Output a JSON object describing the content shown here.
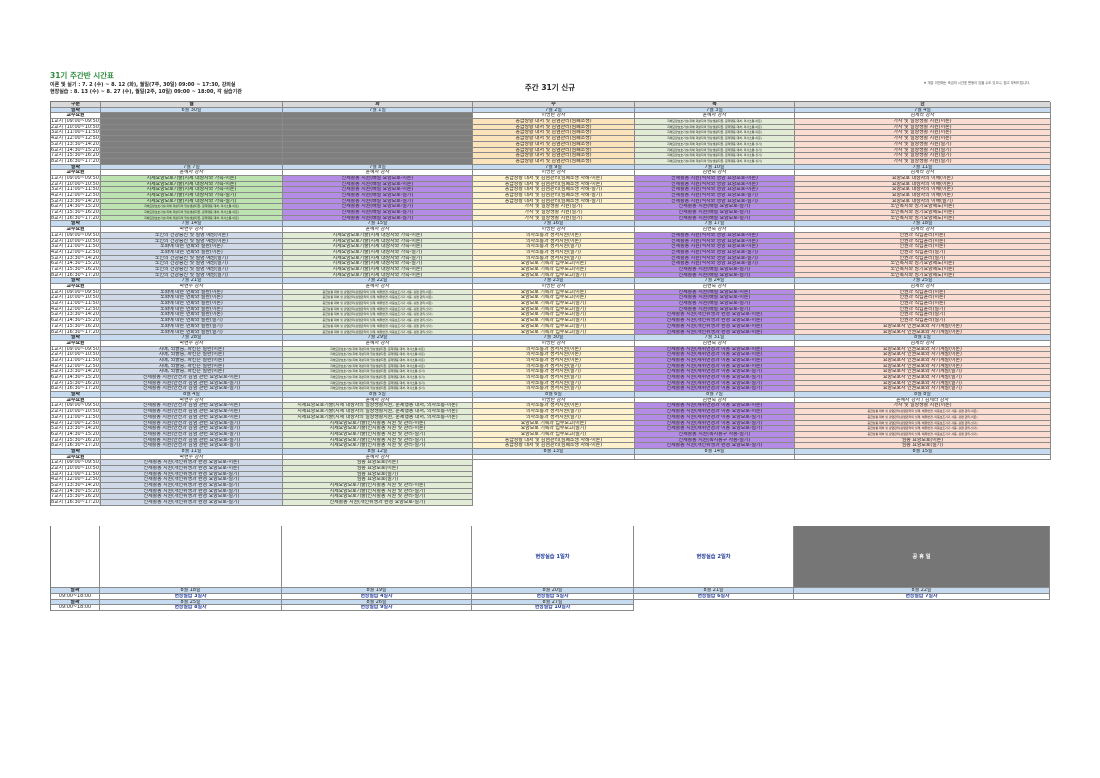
{
  "title": "31기 주간반 시간표",
  "theory": "이론 및 실기 : 7. 2 (수) ~ 8. 12 (화), 월일(7주, 30일) 09:00 ~ 17:30, 강의실",
  "field": "현장실습 : 8. 13 (수) ~ 8. 27 (수), 월일(2주, 10일) 09:00 ~ 18:00, 각 실습기관",
  "center": "주간 31기 신규",
  "note": "※ 개강 이전에는 조금의 시간표 변동이 있을 수도 있으니, 참고 부탁드립니다.",
  "header": [
    "구분",
    "월",
    "화",
    "수",
    "목",
    "금"
  ],
  "lbl": {
    "date": "날짜",
    "inst": "교수요원"
  },
  "periods": [
    "1교시 (09:00~09:50)",
    "2교시 (10:00~10:50)",
    "3교시 (11:00~11:50)",
    "4교시 (12:00~12:50)",
    "5교시 (13:30~14:20)",
    "6교시 (14:30~15:20)",
    "7교시 (15:30~16:20)",
    "8교시 (16:30~17:20)"
  ],
  "week1": {
    "dates": [
      "6월 30일",
      "7월 1일",
      "7월 2일",
      "7월 3일",
      "7월 4일"
    ],
    "inst": [
      "",
      "",
      "이명란 강사",
      "윤혜자 강사",
      "김세라 강사"
    ],
    "wed": [
      "응급상황 대처 및 감염관리(심폐소생)",
      "응급상황 대처 및 감염관리(심폐소생)",
      "응급상황 대처 및 감염관리(심폐소생)",
      "응급상황 대처 및 감염관리(심폐소생)",
      "응급상황 대처 및 감염관리(심폐소생)",
      "응급상황 대처 및 감염관리(심폐소생)",
      "응급상황 대처 및 감염관리(심폐소생)",
      "응급상황 대처 및 감염관리(심폐소생)"
    ],
    "thu": [
      "지체요양보호기술(지체 대상자의 일상생활지원, 문제행동 대처, 의사소통-이론)",
      "지체요양보호기술(지체 대상자의 일상생활지원, 문제행동 대처, 의사소통-이론)",
      "지체요양보호기술(지체 대상자의 일상생활지원, 문제행동 대처, 의사소통-이론)",
      "지체요양보호기술(지체 대상자의 일상생활지원, 문제행동 대처, 의사소통-이론)",
      "지체요양보호기술(지체 대상자의 일상생활지원, 문제행동 대처, 의사소통-실기)",
      "지체요양보호기술(지체 대상자의 일상생활지원, 문제행동 대처, 의사소통-실기)",
      "지체요양보호기술(지체 대상자의 일상생활지원, 문제행동 대처, 의사소통-실기)",
      "지체요양보호기술(지체 대상자의 일상생활지원, 문제행동 대처, 의사소통-실기)"
    ],
    "fri": [
      "가사 및 일상생활 지원(이론)",
      "가사 및 일상생활 지원(이론)",
      "가사 및 일상생활 지원(이론)",
      "가사 및 일상생활 지원(이론)",
      "가사 및 일상생활 지원(실기)",
      "가사 및 일상생활 지원(실기)",
      "가사 및 일상생활 지원(실기)",
      "가사 및 일상생활 지원(실기)"
    ]
  },
  "week2": {
    "dates": [
      "7월 7일",
      "7월 8일",
      "7월 9일",
      "7월 10일",
      "7월 11일"
    ],
    "inst": [
      "윤혜자 강사",
      "윤혜자 강사",
      "이명란 강사",
      "김현숙 강사",
      "김세라 강사"
    ],
    "mon": [
      "지체요양보호기술(지체 대상자와 가족-이론)",
      "지체요양보호기술(지체 대상자와 가족-이론)",
      "지체요양보호기술(지체 대상자와 가족-이론)",
      "지체요양보호기술(지체 대상자와 가족-실기)",
      "지체요양보호기술(지체 대상자와 가족-실기)",
      "지체요양보호기술(지체 대상자의 일상생활지원, 문제행동 대처, 의사소통-이론)",
      "지체요양보호기술(지체 대상자의 일상생활지원, 문제행동 대처, 의사소통-이론)",
      "지체요양보호기술(지체 대상자의 일상생활지원, 문제행동 대처, 의사소통-이론)"
    ],
    "tue": [
      "신체활동 지원(배설 요양보호-이론)",
      "신체활동 지원(배설 요양보호-이론)",
      "신체활동 지원(배설 요양보호-이론)",
      "신체활동 지원(배설 요양보호-실기)",
      "신체활동 지원(배설 요양보호-실기)",
      "신체활동 지원(배설 요양보호-실기)",
      "신체활동 지원(배설 요양보호-실기)",
      "신체활동 지원(배설 요양보호-실기)"
    ],
    "wed": [
      "응급상황 대처 및 감염관리(심폐소생 사례-이론)",
      "응급상황 대처 및 감염관리(심폐소생 사례-이론)",
      "응급상황 대처 및 감염관리(심폐소생 사례-실기)",
      "응급상황 대처 및 감염관리(심폐소생 사례-실기)",
      "응급상황 대처 및 감염관리(심폐소생 사례-실기)",
      "가사 및 일상생활 지원(실기)",
      "가사 및 일상생활 지원(실기)",
      "가사 및 일상생활 지원(실기)"
    ],
    "thu": [
      "신체활동 지원(식사와 영양 요양보호-이론)",
      "신체활동 지원(식사와 영양 요양보호-이론)",
      "신체활동 지원(식사와 영양 요양보호-이론)",
      "신체활동 지원(식사와 영양 요양보호-실기)",
      "신체활동 지원(식사와 영양 요양보호-실기)",
      "신체활동 지원(배설 요양보호-실기)",
      "신체활동 지원(배설 요양보호-실기)",
      "신체활동 지원(배설 요양보호-실기)"
    ],
    "fri": [
      "요양보호 대상자의 이해(이론)",
      "요양보호 대상자의 이해(이론)",
      "요양보호 대상자의 이해(이론)",
      "요양보호 대상자의 이해(이론)",
      "요양보호 대상자의 이해(실기)",
      "노인복지와 장기요양제도(이론)",
      "노인복지와 장기요양제도(이론)",
      "노인복지와 장기요양제도(이론)"
    ]
  },
  "week3": {
    "dates": [
      "7월 14일",
      "7월 15일",
      "7월 16일",
      "7월 17일",
      "7월 18일"
    ],
    "inst": [
      "박현주 강사",
      "윤혜자 강사",
      "이명란 강사",
      "김현숙 강사",
      "김세라 강사"
    ],
    "mon": [
      "노인의 건강증진 및 질병 예방(이론)",
      "노인의 건강증진 및 질병 예방(이론)",
      "노화에 따른 변화와 질환(이론)",
      "노화에 따른 변화와 질환(이론)",
      "노인의 건강증진 및 질병 예방(실기)",
      "노인의 건강증진 및 질병 예방(실기)",
      "노인의 건강증진 및 질병 예방(실기)",
      "노인의 건강증진 및 질병 예방(실기)"
    ],
    "tue": [
      "지체요양보호기술(지체 대상자와 가족-이론)",
      "지체요양보호기술(지체 대상자와 가족-이론)",
      "지체요양보호기술(지체 대상자와 가족-이론)",
      "지체요양보호기술(지체 대상자와 가족-실기)",
      "지체요양보호기술(지체 대상자와 가족-실기)",
      "지체요양보호기술(지체 대상자와 가족-실기)",
      "지체요양보호기술(지체 대상자와 가족-이론)",
      "지체요양보호기술(지체 대상자와 가족-이론)"
    ],
    "wed": [
      "의사소통과 정서지원(이론)",
      "의사소통과 정서지원(이론)",
      "의사소통과 정서지원(실기)",
      "의사소통과 정서지원(실기)",
      "의사소통과 정서지원(실기)",
      "요양보호 기록과 업무보고(이론)",
      "요양보호 기록과 업무보고(이론)",
      "요양보호 기록과 업무보고(실기)"
    ],
    "thu": [
      "신체활동 지원(식사와 영양 요양보호-이론)",
      "신체활동 지원(식사와 영양 요양보호-이론)",
      "신체활동 지원(식사와 영양 요양보호-이론)",
      "신체활동 지원(식사와 영양 요양보호-실기)",
      "신체활동 지원(식사와 영양 요양보호-실기)",
      "신체활동 지원(식사와 영양 요양보호-실기)",
      "신체활동 지원(배설 요양보호-실기)",
      "신체활동 지원(배설 요양보호-실기)"
    ],
    "fri": [
      "인권과 직업윤리(이론)",
      "인권과 직업윤리(이론)",
      "인권과 직업윤리(이론)",
      "인권과 직업윤리(실기)",
      "인권과 직업윤리(실기)",
      "노인복지와 장기요양제도(이론)",
      "노인복지와 장기요양제도(이론)",
      "노인복지와 장기요양제도(이론)"
    ]
  },
  "week4": {
    "dates": [
      "7월 21일",
      "7월 22일",
      "7월 23일",
      "7월 24일",
      "7월 25일"
    ],
    "inst": [
      "박현주 강사",
      "윤혜자 강사",
      "이명란 강사",
      "김현숙 강사",
      "김세라 강사"
    ],
    "mon": [
      "노화에 따른 변화와 질환(이론)",
      "노화에 따른 변화와 질환(이론)",
      "노화에 따른 변화와 질환(이론)",
      "노화에 따른 변화와 질환(이론)",
      "노화에 따른 변화와 질환(이론)",
      "노화에 따른 변화와 질환(실기)",
      "노화에 따른 변화와 질환(실기)",
      "노화에 따른 변화와 질환(실기)"
    ],
    "tue": [
      "응급상황 대처 및 감염관리(감염관리의 실제, 체위변경, 이동보조기기 사용, 감염 관리-이론)",
      "응급상황 대처 및 감염관리(감염관리의 실제, 체위변경, 이동보조기기 사용, 감염 관리-이론)",
      "응급상황 대처 및 감염관리(감염관리의 실제, 체위변경, 이동보조기기 사용, 감염 관리-이론)",
      "응급상황 대처 및 감염관리(감염관리의 실제, 체위변경, 이동보조기기 사용, 감염 관리-실기)",
      "응급상황 대처 및 감염관리(감염관리의 실제, 체위변경, 이동보조기기 사용, 감염 관리-실기)",
      "응급상황 대처 및 감염관리(감염관리의 실제, 체위변경, 이동보조기기 사용, 감염 관리-실기)",
      "응급상황 대처 및 감염관리(감염관리의 실제, 체위변경, 이동보조기기 사용, 감염 관리-실기)",
      "응급상황 대처 및 감염관리(감염관리의 실제, 체위변경, 이동보조기기 사용, 감염 관리-실기)"
    ],
    "wed": [
      "요양보호 기록과 업무보고(이론)",
      "요양보호 기록과 업무보고(이론)",
      "요양보호 기록과 업무보고(실기)",
      "요양보호 기록과 업무보고(실기)",
      "요양보호 기록과 업무보고(실기)",
      "요양보호 기록과 업무보고(실기)",
      "요양보호 기록과 업무보고(실기)",
      "요양보호 기록과 업무보고(실기)"
    ],
    "thu": [
      "신체활동 지원(배설 요양보호-이론)",
      "신체활동 지원(배설 요양보호-이론)",
      "신체활동 지원(배설 요양보호-실기)",
      "신체활동 지원(배설 요양보호-실기)",
      "신체활동 지원(개인위생과 환경 요양보호-이론)",
      "신체활동 지원(개인위생과 환경 요양보호-이론)",
      "신체활동 지원(개인위생과 환경 요양보호-이론)",
      "신체활동 지원(개인위생과 환경 요양보호-이론)"
    ],
    "fri": [
      "인권과 직업윤리(이론)",
      "인권과 직업윤리(이론)",
      "인권과 직업윤리(이론)",
      "인권과 직업윤리(실기)",
      "인권과 직업윤리(실기)",
      "인권과 직업윤리(실기)",
      "요양보호사 인권보호와 자기계발(이론)",
      "요양보호사 인권보호와 자기계발(이론)"
    ]
  },
  "week5": {
    "dates": [
      "7월 28일",
      "7월 29일",
      "7월 30일",
      "7월 31일",
      "8월 1일"
    ],
    "inst": [
      "박현주 강사",
      "윤혜자 강사",
      "이명란 강사",
      "김현숙 강사",
      "김세라 강사"
    ],
    "mon": [
      "치매, 뇌졸중, 파킨슨 질환(이론)",
      "치매, 뇌졸중, 파킨슨 질환(이론)",
      "치매, 뇌졸중, 파킨슨 질환(이론)",
      "치매, 뇌졸중, 파킨슨 질환(이론)",
      "치매, 뇌졸중, 파킨슨 질환(이론)",
      "신체활동 지원(안전과 감염 관련 요양보호-이론)",
      "신체활동 지원(안전과 감염 관련 요양보호-실기)",
      "신체활동 지원(안전과 감염 관련 요양보호-실기)"
    ],
    "tue": [
      "지체요양보호기술(지체 대상자의 일상생활지원, 문제행동 대처, 의사소통-이론)",
      "지체요양보호기술(지체 대상자의 일상생활지원, 문제행동 대처, 의사소통-이론)",
      "지체요양보호기술(지체 대상자의 일상생활지원, 문제행동 대처, 의사소통-이론)",
      "지체요양보호기술(지체 대상자의 일상생활지원, 문제행동 대처, 의사소통-이론)",
      "지체요양보호기술(지체 대상자의 일상생활지원, 문제행동 대처, 의사소통-실기)",
      "지체요양보호기술(지체 대상자의 일상생활지원, 문제행동 대처, 의사소통-실기)",
      "지체요양보호기술(지체 대상자의 일상생활지원, 문제행동 대처, 의사소통-실기)",
      "지체요양보호기술(지체 대상자의 일상생활지원, 문제행동 대처, 의사소통-실기)"
    ],
    "wed": [
      "의사소통과 정서지원(이론)",
      "의사소통과 정서지원(이론)",
      "의사소통과 정서지원(이론)",
      "의사소통과 정서지원(실기)",
      "의사소통과 정서지원(실기)",
      "의사소통과 정서지원(실기)",
      "의사소통과 정서지원(실기)",
      "의사소통과 정서지원(실기)"
    ],
    "thu": [
      "신체활동 지원(체위변경과 이동 요양보호-이론)",
      "신체활동 지원(체위변경과 이동 요양보호-이론)",
      "신체활동 지원(체위변경과 이동 요양보호-이론)",
      "신체활동 지원(체위변경과 이동 요양보호-이론)",
      "신체활동 지원(체위변경과 이동 요양보호-실기)",
      "신체활동 지원(체위변경과 이동 요양보호-실기)",
      "신체활동 지원(체위변경과 이동 요양보호-실기)",
      "신체활동 지원(체위변경과 이동 요양보호-실기)"
    ],
    "fri": [
      "요양보호사 인권보호와 자기계발(이론)",
      "요양보호사 인권보호와 자기계발(이론)",
      "요양보호사 인권보호와 자기계발(이론)",
      "요양보호사 인권보호와 자기계발(이론)",
      "요양보호사 인권보호와 자기계발(실기)",
      "요양보호사 인권보호와 자기계발(실기)",
      "요양보호사 인권보호와 자기계발(실기)",
      "요양보호사 인권보호와 자기계발(실기)"
    ]
  },
  "week6": {
    "dates": [
      "8월 4일",
      "8월 5일",
      "8월 6일",
      "8월 7일",
      "8월 8일"
    ],
    "inst": [
      "박현주 강사",
      "윤혜자 강사",
      "이명란 강사",
      "김현숙 강사",
      "윤혜자 강사 / 김세라 강사"
    ],
    "mon": [
      "신체활동 지원(안전과 감염 관련 요양보호-이론)",
      "신체활동 지원(안전과 감염 관련 요양보호-이론)",
      "신체활동 지원(안전과 감염 관련 요양보호-이론)",
      "신체활동 지원(안전과 감염 관련 요양보호-실기)",
      "신체활동 지원(안전과 감염 관련 요양보호-실기)",
      "신체활동 지원(안전과 감염 관련 요양보호-실기)",
      "신체활동 지원(안전과 감염 관련 요양보호-실기)",
      "신체활동 지원(안전과 감염 관련 요양보호-실기)"
    ],
    "tue": [
      "지체요양보호기술(지체 대상자의 일상생활지원, 문제행동 대처, 의사소통-이론)",
      "지체요양보호기술(지체 대상자의 일상생활지원, 문제행동 대처, 의사소통-이론)",
      "지체요양보호기술(지체 대상자의 일상생활지원, 문제행동 대처, 의사소통-이론)",
      "지체요양보호기술(인지활동 지원 및 관리-이론)",
      "지체요양보호기술(인지활동 지원 및 관리-이론)",
      "지체요양보호기술(인지활동 지원 및 관리-실기)",
      "지체요양보호기술(인지활동 지원 및 관리-실기)",
      "지체요양보호기술(인지활동 지원 및 관리-실기)"
    ],
    "wed": [
      "의사소통과 정서지원(이론)",
      "의사소통과 정서지원(실기)",
      "의사소통과 정서지원(실기)",
      "요양보호 기록과 업무보고(이론)",
      "요양보호 기록과 업무보고(실기)",
      "요양보호 기록과 업무보고(실기)",
      "응급상황 대처 및 감염관리(심폐소생 사례-이론)",
      "응급상황 대처 및 감염관리(심폐소생 사례-이론)"
    ],
    "thu": [
      "신체활동 지원(체위변경과 이동 요양보호-이론)",
      "신체활동 지원(체위변경과 이동 요양보호-이론)",
      "신체활동 지원(체위변경과 이동 요양보호-실기)",
      "신체활동 지원(체위변경과 이동 요양보호-실기)",
      "신체활동 지원(체위변경과 이동 요양보호-실기)",
      "신체활동 지원(복지용구 사용-실기)",
      "신체활동 지원(복지용구 사용-실기)",
      "신체활동 지원(개인위생과 환경 요양보호-실기)"
    ],
    "fri": [
      "가사 및 일상생활 지원(이론)",
      "응급상황 대처 및 감염관리(감염관리의 실제, 체위변경, 이동보조기기 사용, 감염 관리-이론)",
      "응급상황 대처 및 감염관리(감염관리의 실제, 체위변경, 이동보조기기 사용, 감염 관리-이론)",
      "응급상황 대처 및 감염관리(감염관리의 실제, 체위변경, 이동보조기기 사용, 감염 관리-실기)",
      "응급상황 대처 및 감염관리(감염관리의 실제, 체위변경, 이동보조기기 사용, 감염 관리-실기)",
      "응급상황 대처 및 감염관리(감염관리의 실제, 체위변경, 이동보조기기 사용, 감염 관리-실기)",
      "임종 요양보호(이론)",
      "임종 요양보호(실기)"
    ]
  },
  "week7": {
    "dates": [
      "8월 11일",
      "8월 12일",
      "8월 13일",
      "8월 14일",
      "8월 15일"
    ],
    "inst": [
      "박현주 강사",
      "윤혜자 강사"
    ],
    "mon": [
      "신체활동 지원(개인위생과 환경 요양보호-이론)",
      "신체활동 지원(개인위생과 환경 요양보호-이론)",
      "신체활동 지원(개인위생과 환경 요양보호-실기)",
      "신체활동 지원(개인위생과 환경 요양보호-실기)",
      "신체활동 지원(개인위생과 환경 요양보호-실기)",
      "신체활동 지원(개인위생과 환경 요양보호-실기)",
      "신체활동 지원(개인위생과 환경 요양보호-실기)",
      "신체활동 지원(개인위생과 환경 요양보호-실기)"
    ],
    "tue": [
      "임종 요양보호(이론)",
      "임종 요양보호(이론)",
      "임종 요양보호(실기)",
      "임종 요양보호(실기)",
      "지체요양보호기술(인지활동 지원 및 관리-이론)",
      "지체요양보호기술(인지활동 지원 및 관리-실기)",
      "지체요양보호기술(인지활동 지원 및 관리-실기)",
      "신체활동 지원(개인위생과 환경 요양보호-실기)"
    ],
    "wed": "현장실습 1일차",
    "thu": "현장실습 2일차",
    "fri": "공 휴 일"
  },
  "week8": {
    "dates": [
      "8월 18일",
      "8월 19일",
      "8월 20일",
      "8월 21일",
      "8월 22일"
    ],
    "time": "09:00~18:00",
    "labels": [
      "현장실습 3일차",
      "현장실습 4일차",
      "현장실습 5일차",
      "현장실습 6일차",
      "현장실습 7일차"
    ]
  },
  "week9": {
    "dates": [
      "8월 25일",
      "8월 26일",
      "8월 27일"
    ],
    "time": "09:00~18:00",
    "labels": [
      "현장실습 8일차",
      "현장실습 9일차",
      "현장실습 10일차"
    ]
  }
}
